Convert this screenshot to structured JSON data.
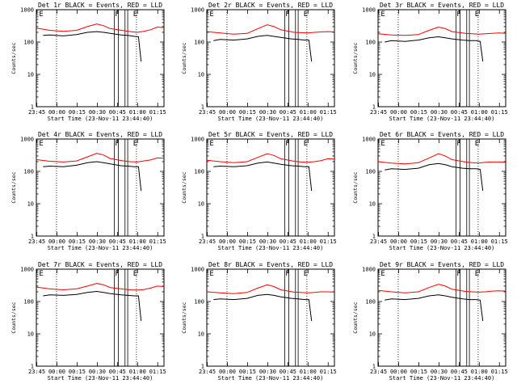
{
  "figure": {
    "panel_titles": [
      "Det 1r BLACK = Events, RED = LLD",
      "Det 2r BLACK = Events, RED = LLD",
      "Det 3r BLACK = Events, RED = LLD",
      "Det 4r BLACK = Events, RED = LLD",
      "Det 5r BLACK = Events, RED = LLD",
      "Det 6r BLACK = Events, RED = LLD",
      "Det 7r BLACK = Events, RED = LLD",
      "Det 8r BLACK = Events, RED = LLD",
      "Det 9r BLACK = Events, RED = LLD"
    ],
    "xlabel": "Start Time (23-Nov-11 23:44:40)",
    "ylabel": "Counts/sec",
    "x_ticks": [
      "23:45",
      "00:00",
      "00:15",
      "00:30",
      "00:45",
      "01:00",
      "01:15"
    ],
    "y_ticks": [
      "1",
      "10",
      "100",
      "1000"
    ],
    "markers": [
      "E",
      "F",
      "E"
    ],
    "colors": {
      "events": "#000000",
      "lld": "#ff0000",
      "axes": "#000000"
    }
  },
  "chart_data": [
    {
      "type": "line",
      "title": "Det 1r BLACK = Events, RED = LLD",
      "xlabel": "Start Time (23-Nov-11 23:44:40)",
      "ylabel": "Counts/sec",
      "x_unit": "minutes after 23:44:40",
      "xlim": [
        0,
        95
      ],
      "ylim": [
        1,
        1000
      ],
      "yscale": "log",
      "series": [
        {
          "name": "LLD",
          "color": "red",
          "x": [
            0,
            10,
            20,
            30,
            38,
            45,
            50,
            55,
            65,
            70,
            75,
            80,
            85,
            90,
            95
          ],
          "y": [
            270,
            230,
            215,
            230,
            300,
            360,
            320,
            260,
            225,
            210,
            200,
            215,
            240,
            290,
            280
          ]
        },
        {
          "name": "Events",
          "color": "black",
          "x": [
            5,
            10,
            20,
            30,
            38,
            45,
            50,
            55,
            63,
            68,
            73,
            76,
            78
          ],
          "y": [
            160,
            165,
            155,
            170,
            200,
            210,
            200,
            185,
            165,
            160,
            150,
            145,
            25
          ]
        }
      ]
    },
    {
      "type": "line",
      "title": "Det 2r BLACK = Events, RED = LLD",
      "xlabel": "Start Time (23-Nov-11 23:44:40)",
      "ylabel": "Counts/sec",
      "x_unit": "minutes after 23:44:40",
      "xlim": [
        0,
        95
      ],
      "ylim": [
        1,
        1000
      ],
      "yscale": "log",
      "series": [
        {
          "name": "LLD",
          "color": "red",
          "x": [
            0,
            10,
            20,
            30,
            38,
            45,
            50,
            55,
            65,
            70,
            75,
            80,
            85,
            90,
            95
          ],
          "y": [
            210,
            190,
            175,
            185,
            260,
            340,
            300,
            240,
            200,
            195,
            190,
            200,
            205,
            210,
            205
          ]
        },
        {
          "name": "Events",
          "color": "black",
          "x": [
            5,
            10,
            20,
            30,
            38,
            45,
            50,
            55,
            63,
            68,
            73,
            76,
            78
          ],
          "y": [
            110,
            120,
            115,
            125,
            150,
            160,
            150,
            140,
            125,
            120,
            115,
            115,
            25
          ]
        }
      ]
    },
    {
      "type": "line",
      "title": "Det 3r BLACK = Events, RED = LLD",
      "xlabel": "Start Time (23-Nov-11 23:44:40)",
      "ylabel": "Counts/sec",
      "x_unit": "minutes after 23:44:40",
      "xlim": [
        0,
        95
      ],
      "ylim": [
        1,
        1000
      ],
      "yscale": "log",
      "series": [
        {
          "name": "LLD",
          "color": "red",
          "x": [
            0,
            10,
            20,
            30,
            38,
            45,
            50,
            55,
            65,
            70,
            75,
            80,
            85,
            90,
            95
          ],
          "y": [
            180,
            165,
            160,
            170,
            230,
            290,
            260,
            210,
            185,
            180,
            175,
            180,
            185,
            190,
            185
          ]
        },
        {
          "name": "Events",
          "color": "black",
          "x": [
            5,
            10,
            20,
            30,
            38,
            45,
            50,
            55,
            63,
            68,
            73,
            76,
            78
          ],
          "y": [
            100,
            110,
            105,
            115,
            135,
            145,
            135,
            125,
            115,
            110,
            110,
            105,
            25
          ]
        }
      ]
    },
    {
      "type": "line",
      "title": "Det 4r BLACK = Events, RED = LLD",
      "xlabel": "Start Time (23-Nov-11 23:44:40)",
      "ylabel": "Counts/sec",
      "x_unit": "minutes after 23:44:40",
      "xlim": [
        0,
        95
      ],
      "ylim": [
        1,
        1000
      ],
      "yscale": "log",
      "series": [
        {
          "name": "LLD",
          "color": "red",
          "x": [
            0,
            10,
            20,
            30,
            38,
            45,
            50,
            55,
            65,
            70,
            75,
            80,
            85,
            90,
            95
          ],
          "y": [
            230,
            205,
            195,
            210,
            280,
            360,
            320,
            250,
            210,
            200,
            195,
            210,
            225,
            260,
            255
          ]
        },
        {
          "name": "Events",
          "color": "black",
          "x": [
            5,
            10,
            20,
            30,
            38,
            45,
            50,
            55,
            63,
            68,
            73,
            76,
            78
          ],
          "y": [
            140,
            145,
            140,
            155,
            185,
            200,
            185,
            170,
            150,
            145,
            140,
            140,
            25
          ]
        }
      ]
    },
    {
      "type": "line",
      "title": "Det 5r BLACK = Events, RED = LLD",
      "xlabel": "Start Time (23-Nov-11 23:44:40)",
      "ylabel": "Counts/sec",
      "x_unit": "minutes after 23:44:40",
      "xlim": [
        0,
        95
      ],
      "ylim": [
        1,
        1000
      ],
      "yscale": "log",
      "series": [
        {
          "name": "LLD",
          "color": "red",
          "x": [
            0,
            10,
            20,
            30,
            38,
            45,
            50,
            55,
            65,
            70,
            75,
            80,
            85,
            90,
            95
          ],
          "y": [
            220,
            200,
            185,
            200,
            270,
            350,
            310,
            245,
            205,
            195,
            190,
            200,
            215,
            245,
            240
          ]
        },
        {
          "name": "Events",
          "color": "black",
          "x": [
            5,
            10,
            20,
            30,
            38,
            45,
            50,
            55,
            63,
            68,
            73,
            76,
            78
          ],
          "y": [
            140,
            145,
            140,
            150,
            180,
            195,
            180,
            165,
            150,
            145,
            140,
            140,
            25
          ]
        }
      ]
    },
    {
      "type": "line",
      "title": "Det 6r BLACK = Events, RED = LLD",
      "xlabel": "Start Time (23-Nov-11 23:44:40)",
      "ylabel": "Counts/sec",
      "x_unit": "minutes after 23:44:40",
      "xlim": [
        0,
        95
      ],
      "ylim": [
        1,
        1000
      ],
      "yscale": "log",
      "series": [
        {
          "name": "LLD",
          "color": "red",
          "x": [
            0,
            10,
            20,
            30,
            38,
            45,
            50,
            55,
            65,
            70,
            75,
            80,
            85,
            90,
            95
          ],
          "y": [
            200,
            180,
            170,
            185,
            260,
            350,
            300,
            230,
            195,
            185,
            180,
            190,
            195,
            195,
            190
          ]
        },
        {
          "name": "Events",
          "color": "black",
          "x": [
            5,
            10,
            20,
            30,
            38,
            45,
            50,
            55,
            63,
            68,
            73,
            76,
            78
          ],
          "y": [
            110,
            120,
            115,
            125,
            160,
            175,
            160,
            140,
            125,
            120,
            120,
            115,
            25
          ]
        }
      ]
    },
    {
      "type": "line",
      "title": "Det 7r BLACK = Events, RED = LLD",
      "xlabel": "Start Time (23-Nov-11 23:44:40)",
      "ylabel": "Counts/sec",
      "x_unit": "minutes after 23:44:40",
      "xlim": [
        0,
        95
      ],
      "ylim": [
        1,
        1000
      ],
      "yscale": "log",
      "series": [
        {
          "name": "LLD",
          "color": "red",
          "x": [
            0,
            10,
            20,
            30,
            38,
            45,
            50,
            55,
            65,
            70,
            75,
            80,
            85,
            90,
            95
          ],
          "y": [
            280,
            245,
            230,
            245,
            300,
            360,
            330,
            270,
            240,
            230,
            225,
            235,
            260,
            300,
            290
          ]
        },
        {
          "name": "Events",
          "color": "black",
          "x": [
            5,
            10,
            20,
            30,
            38,
            45,
            50,
            55,
            63,
            68,
            73,
            76,
            78
          ],
          "y": [
            150,
            160,
            155,
            165,
            190,
            205,
            190,
            175,
            160,
            155,
            150,
            150,
            25
          ]
        }
      ]
    },
    {
      "type": "line",
      "title": "Det 8r BLACK = Events, RED = LLD",
      "xlabel": "Start Time (23-Nov-11 23:44:40)",
      "ylabel": "Counts/sec",
      "x_unit": "minutes after 23:44:40",
      "xlim": [
        0,
        95
      ],
      "ylim": [
        1,
        1000
      ],
      "yscale": "log",
      "series": [
        {
          "name": "LLD",
          "color": "red",
          "x": [
            0,
            10,
            20,
            30,
            38,
            45,
            50,
            55,
            65,
            70,
            75,
            80,
            85,
            90,
            95
          ],
          "y": [
            200,
            185,
            175,
            190,
            260,
            330,
            290,
            230,
            195,
            190,
            185,
            190,
            200,
            200,
            195
          ]
        },
        {
          "name": "Events",
          "color": "black",
          "x": [
            5,
            10,
            20,
            30,
            38,
            45,
            50,
            55,
            63,
            68,
            73,
            76,
            78
          ],
          "y": [
            115,
            120,
            115,
            125,
            155,
            165,
            155,
            140,
            125,
            120,
            115,
            115,
            25
          ]
        }
      ]
    },
    {
      "type": "line",
      "title": "Det 9r BLACK = Events, RED = LLD",
      "xlabel": "Start Time (23-Nov-11 23:44:40)",
      "ylabel": "Counts/sec",
      "x_unit": "minutes after 23:44:40",
      "xlim": [
        0,
        95
      ],
      "ylim": [
        1,
        1000
      ],
      "yscale": "log",
      "series": [
        {
          "name": "LLD",
          "color": "red",
          "x": [
            0,
            10,
            20,
            30,
            38,
            45,
            50,
            55,
            65,
            70,
            75,
            80,
            85,
            90,
            95
          ],
          "y": [
            220,
            200,
            185,
            200,
            270,
            340,
            300,
            240,
            205,
            200,
            195,
            200,
            210,
            215,
            210
          ]
        },
        {
          "name": "Events",
          "color": "black",
          "x": [
            5,
            10,
            20,
            30,
            38,
            45,
            50,
            55,
            63,
            68,
            73,
            76,
            78
          ],
          "y": [
            110,
            120,
            115,
            125,
            150,
            160,
            150,
            135,
            120,
            115,
            115,
            110,
            25
          ]
        }
      ]
    }
  ]
}
